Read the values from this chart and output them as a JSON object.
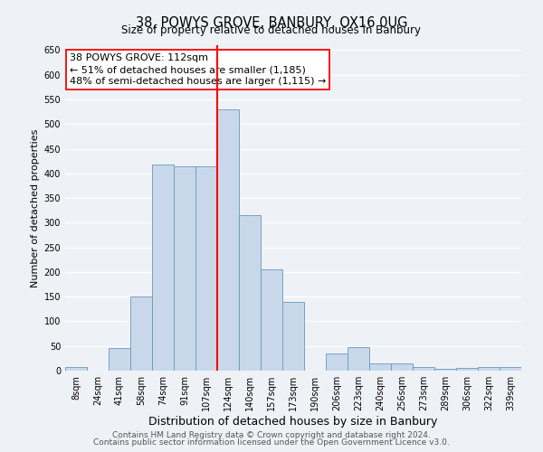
{
  "title": "38, POWYS GROVE, BANBURY, OX16 0UG",
  "subtitle": "Size of property relative to detached houses in Banbury",
  "xlabel": "Distribution of detached houses by size in Banbury",
  "ylabel": "Number of detached properties",
  "bin_labels": [
    "8sqm",
    "24sqm",
    "41sqm",
    "58sqm",
    "74sqm",
    "91sqm",
    "107sqm",
    "124sqm",
    "140sqm",
    "157sqm",
    "173sqm",
    "190sqm",
    "206sqm",
    "223sqm",
    "240sqm",
    "256sqm",
    "273sqm",
    "289sqm",
    "306sqm",
    "322sqm",
    "339sqm"
  ],
  "bar_heights": [
    8,
    0,
    45,
    150,
    418,
    415,
    415,
    530,
    315,
    205,
    140,
    0,
    35,
    48,
    15,
    14,
    7,
    4,
    5,
    7,
    7
  ],
  "bar_color": "#c8d8ea",
  "bar_edge_color": "#6699bb",
  "vline_color": "red",
  "annotation_title": "38 POWYS GROVE: 112sqm",
  "annotation_line2": "← 51% of detached houses are smaller (1,185)",
  "annotation_line3": "48% of semi-detached houses are larger (1,115) →",
  "ylim": [
    0,
    660
  ],
  "yticks": [
    0,
    50,
    100,
    150,
    200,
    250,
    300,
    350,
    400,
    450,
    500,
    550,
    600,
    650
  ],
  "footnote1": "Contains HM Land Registry data © Crown copyright and database right 2024.",
  "footnote2": "Contains public sector information licensed under the Open Government Licence v3.0.",
  "background_color": "#eef2f7",
  "grid_color": "#ffffff",
  "title_fontsize": 10.5,
  "subtitle_fontsize": 8.5,
  "xlabel_fontsize": 9,
  "ylabel_fontsize": 8,
  "tick_fontsize": 7,
  "annotation_fontsize": 8,
  "footnote_fontsize": 6.5
}
